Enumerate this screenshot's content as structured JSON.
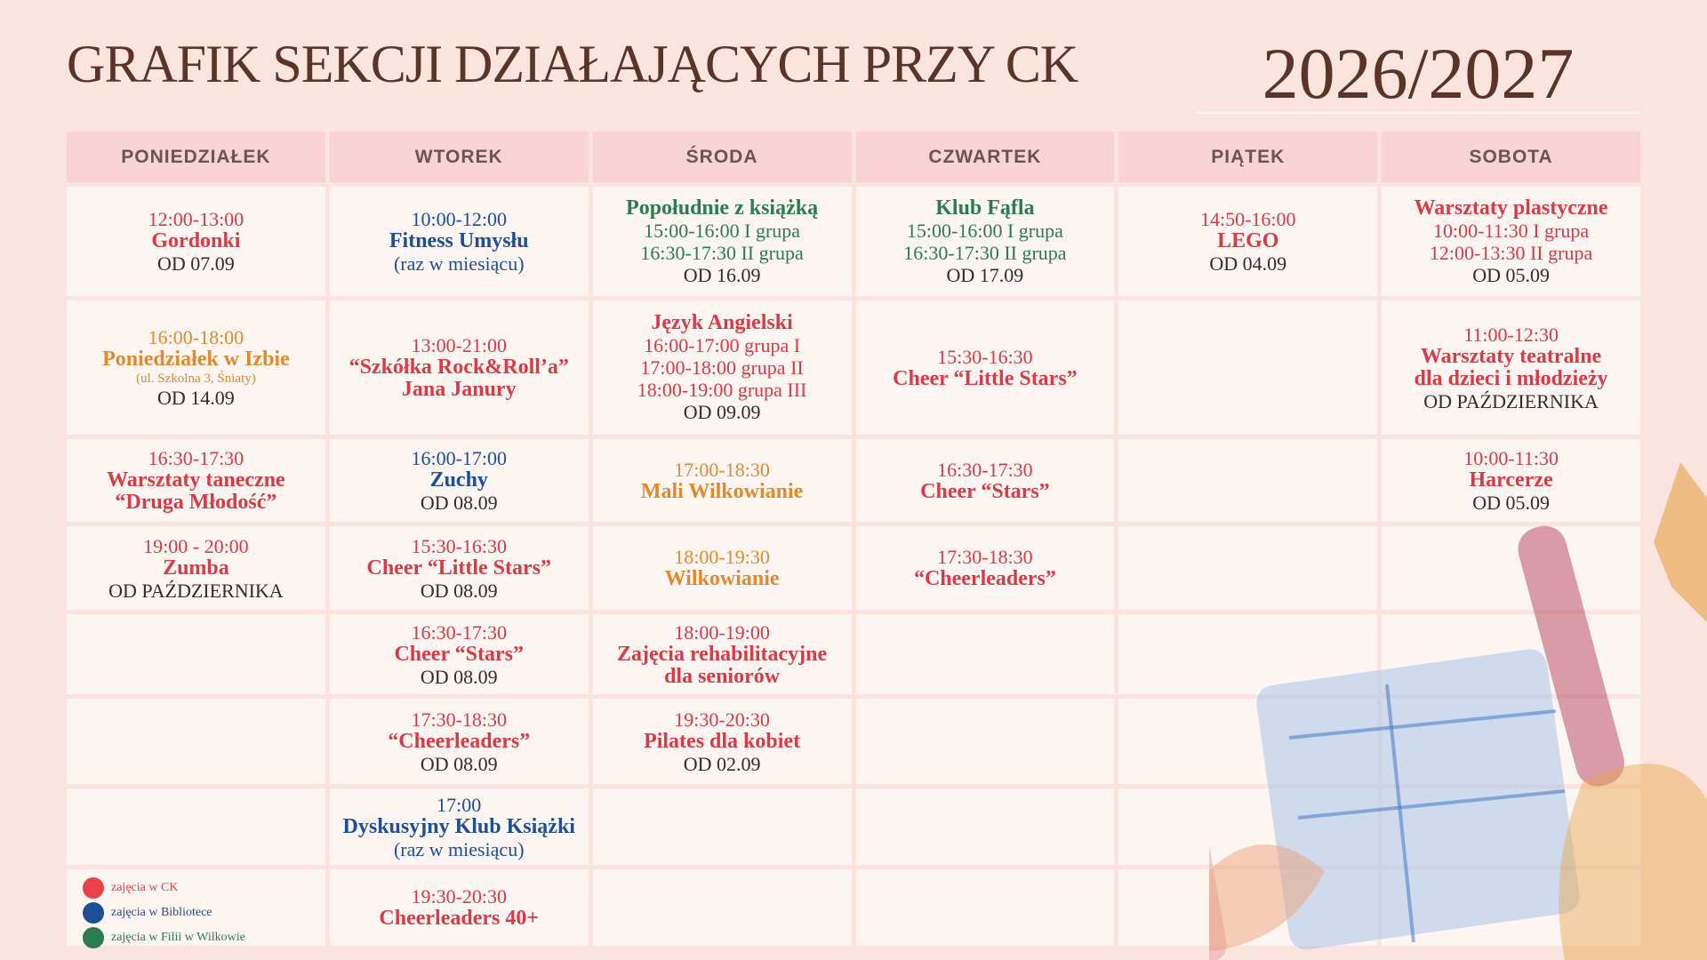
{
  "header": {
    "title": "GRAFIK SEKCJI DZIAŁAJĄCYCH PRZY CK",
    "year": "2026/2027"
  },
  "table": {
    "headers": [
      "PONIEDZIAŁEK",
      "WTOREK",
      "ŚRODA",
      "CZWARTEK",
      "PIĄTEK",
      "SOBOTA"
    ],
    "rows": [
      [
        {
          "color": "#d93a45",
          "lines": [
            {
              "text": "12:00-13:00",
              "style": "plain"
            },
            {
              "text": "Gordonki",
              "style": "bold"
            },
            {
              "text": "OD 07.09",
              "style": "date"
            }
          ]
        },
        {
          "color": "#1d4f97",
          "lines": [
            {
              "text": "10:00-12:00",
              "style": "plain"
            },
            {
              "text": "Fitness Umysłu",
              "style": "bold"
            },
            {
              "text": "(raz w miesiącu)",
              "style": "plain"
            }
          ]
        },
        {
          "color": "#2b7d4f",
          "lines": [
            {
              "text": "Popołudnie z książką",
              "style": "bold"
            },
            {
              "text": "15:00-16:00 I grupa",
              "style": "plain"
            },
            {
              "text": "16:30-17:30 II grupa",
              "style": "plain"
            },
            {
              "text": "OD 16.09",
              "style": "date"
            }
          ]
        },
        {
          "color": "#2b7d4f",
          "lines": [
            {
              "text": "Klub Fąfla",
              "style": "bold"
            },
            {
              "text": "15:00-16:00 I grupa",
              "style": "plain"
            },
            {
              "text": "16:30-17:30 II grupa",
              "style": "plain"
            },
            {
              "text": "OD 17.09",
              "style": "date"
            }
          ]
        },
        {
          "color": "#d93a45",
          "lines": [
            {
              "text": "14:50-16:00",
              "style": "plain"
            },
            {
              "text": "LEGO",
              "style": "bold"
            },
            {
              "text": "OD 04.09",
              "style": "date"
            }
          ]
        },
        {
          "color": "#d93a45",
          "lines": [
            {
              "text": "Warsztaty plastyczne",
              "style": "bold"
            },
            {
              "text": "10:00-11:30 I grupa",
              "style": "plain"
            },
            {
              "text": "12:00-13:30 II grupa",
              "style": "plain"
            },
            {
              "text": "OD 05.09",
              "style": "date"
            }
          ]
        }
      ],
      [
        {
          "color": "#e08a2c",
          "lines": [
            {
              "text": "16:00-18:00",
              "style": "plain"
            },
            {
              "text": "Poniedziałek w Izbie",
              "style": "bold"
            },
            {
              "text": "(ul. Szkolna 3, Śniaty)",
              "style": "small"
            },
            {
              "text": "OD 14.09",
              "style": "date"
            }
          ]
        },
        {
          "color": "#d93a45",
          "lines": [
            {
              "text": "13:00-21:00",
              "style": "plain"
            },
            {
              "text": "“Szkółka Rock&Roll’a”",
              "style": "bold"
            },
            {
              "text": "Jana Janury",
              "style": "bold"
            }
          ]
        },
        {
          "color": "#d93a45",
          "lines": [
            {
              "text": "Język Angielski",
              "style": "bold"
            },
            {
              "text": "16:00-17:00 grupa I",
              "style": "plain"
            },
            {
              "text": "17:00-18:00 grupa II",
              "style": "plain"
            },
            {
              "text": "18:00-19:00 grupa III",
              "style": "plain"
            },
            {
              "text": "OD 09.09",
              "style": "date"
            }
          ]
        },
        {
          "color": "#d93a45",
          "lines": [
            {
              "text": "15:30-16:30",
              "style": "plain"
            },
            {
              "text": "Cheer “Little Stars”",
              "style": "bold"
            }
          ]
        },
        null,
        {
          "color": "#d93a45",
          "lines": [
            {
              "text": "11:00-12:30",
              "style": "plain"
            },
            {
              "text": "Warsztaty teatralne",
              "style": "bold"
            },
            {
              "text": "dla dzieci i młodzieży",
              "style": "bold"
            },
            {
              "text": "OD PAŹDZIERNIKA",
              "style": "date"
            }
          ]
        }
      ],
      [
        {
          "color": "#d93a45",
          "lines": [
            {
              "text": "16:30-17:30",
              "style": "plain"
            },
            {
              "text": "Warsztaty taneczne",
              "style": "bold"
            },
            {
              "text": "“Druga Młodość”",
              "style": "bold"
            }
          ]
        },
        {
          "color": "#1d4f97",
          "lines": [
            {
              "text": "16:00-17:00",
              "style": "plain"
            },
            {
              "text": "Zuchy",
              "style": "bold"
            },
            {
              "text": "OD 08.09",
              "style": "date"
            }
          ]
        },
        {
          "color": "#e08a2c",
          "lines": [
            {
              "text": "17:00-18:30",
              "style": "plain"
            },
            {
              "text": "Mali Wilkowianie",
              "style": "bold"
            }
          ]
        },
        {
          "color": "#d93a45",
          "lines": [
            {
              "text": "16:30-17:30",
              "style": "plain"
            },
            {
              "text": "Cheer “Stars”",
              "style": "bold"
            }
          ]
        },
        null,
        {
          "color": "#d93a45",
          "lines": [
            {
              "text": "10:00-11:30",
              "style": "plain"
            },
            {
              "text": "Harcerze",
              "style": "bold"
            },
            {
              "text": "OD 05.09",
              "style": "date"
            }
          ]
        }
      ],
      [
        {
          "color": "#d93a45",
          "lines": [
            {
              "text": "19:00 - 20:00",
              "style": "plain"
            },
            {
              "text": "Zumba",
              "style": "bold"
            },
            {
              "text": "OD PAŹDZIERNIKA",
              "style": "date"
            }
          ]
        },
        {
          "color": "#d93a45",
          "lines": [
            {
              "text": "15:30-16:30",
              "style": "plain"
            },
            {
              "text": "Cheer “Little Stars”",
              "style": "bold"
            },
            {
              "text": "OD 08.09",
              "style": "date"
            }
          ]
        },
        {
          "color": "#e08a2c",
          "lines": [
            {
              "text": "18:00-19:30",
              "style": "plain"
            },
            {
              "text": "Wilkowianie",
              "style": "bold"
            }
          ]
        },
        {
          "color": "#d93a45",
          "lines": [
            {
              "text": "17:30-18:30",
              "style": "plain"
            },
            {
              "text": "“Cheerleaders”",
              "style": "bold"
            }
          ]
        },
        null,
        null
      ],
      [
        null,
        {
          "color": "#d93a45",
          "lines": [
            {
              "text": "16:30-17:30",
              "style": "plain"
            },
            {
              "text": "Cheer “Stars”",
              "style": "bold"
            },
            {
              "text": "OD 08.09",
              "style": "date"
            }
          ]
        },
        {
          "color": "#d93a45",
          "lines": [
            {
              "text": "18:00-19:00",
              "style": "plain"
            },
            {
              "text": "Zajęcia rehabilitacyjne",
              "style": "bold"
            },
            {
              "text": "dla seniorów",
              "style": "bold"
            }
          ]
        },
        null,
        null,
        null
      ],
      [
        null,
        {
          "color": "#d93a45",
          "lines": [
            {
              "text": "17:30-18:30",
              "style": "plain"
            },
            {
              "text": "“Cheerleaders”",
              "style": "bold"
            },
            {
              "text": "OD 08.09",
              "style": "date"
            }
          ]
        },
        {
          "color": "#d93a45",
          "lines": [
            {
              "text": "19:30-20:30",
              "style": "plain"
            },
            {
              "text": "Pilates dla kobiet",
              "style": "bold"
            },
            {
              "text": "OD 02.09",
              "style": "date"
            }
          ]
        },
        null,
        null,
        null
      ],
      [
        null,
        {
          "color": "#1d4f97",
          "lines": [
            {
              "text": "17:00",
              "style": "plain"
            },
            {
              "text": "Dyskusyjny Klub Książki",
              "style": "bold"
            },
            {
              "text": "(raz w miesiącu)",
              "style": "plain"
            }
          ]
        },
        null,
        null,
        null,
        null
      ],
      [
        null,
        {
          "color": "#d93a45",
          "lines": [
            {
              "text": "19:30-20:30",
              "style": "plain"
            },
            {
              "text": "Cheerleaders 40+",
              "style": "bold"
            }
          ]
        },
        null,
        null,
        null,
        null
      ]
    ]
  },
  "legend": [
    {
      "label": "zajęcia w CK",
      "color": "#e8424a"
    },
    {
      "label": "zajęcia w Bibliotece",
      "color": "#1d4f97"
    },
    {
      "label": "zajęcia w Filii w Wilkowie",
      "color": "#2b7d4f"
    }
  ]
}
